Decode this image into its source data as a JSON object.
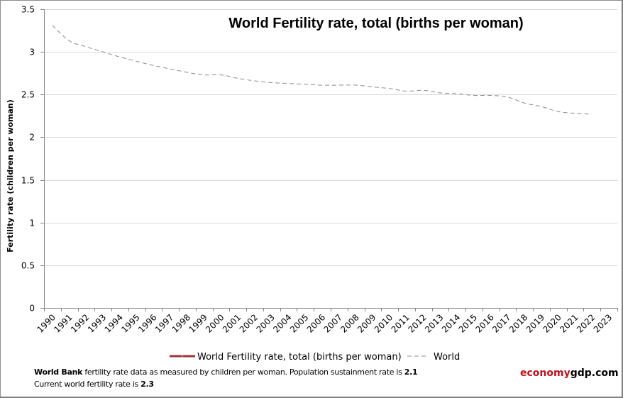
{
  "chart_data": {
    "type": "line",
    "title": "World Fertility rate, total (births per woman)",
    "xlabel": "",
    "ylabel": "Fertility rate (children per woman)",
    "ylim": [
      0,
      3.5
    ],
    "yticks": [
      "0",
      "0.5",
      "1",
      "1.5",
      "2",
      "2.5",
      "3",
      "3.5"
    ],
    "ytick_values": [
      0,
      0.5,
      1,
      1.5,
      2,
      2.5,
      3,
      3.5
    ],
    "grid": true,
    "categories": [
      "1990",
      "1991",
      "1992",
      "1993",
      "1994",
      "1995",
      "1996",
      "1997",
      "1998",
      "1999",
      "2000",
      "2001",
      "2002",
      "2003",
      "2004",
      "2005",
      "2006",
      "2007",
      "2008",
      "2009",
      "2010",
      "2011",
      "2012",
      "2013",
      "2014",
      "2015",
      "2016",
      "2017",
      "2018",
      "2019",
      "2020",
      "2021",
      "2022",
      "2023"
    ],
    "series": [
      {
        "name": "World Fertility rate, total (births per woman)",
        "style": "solid-marker",
        "color": "#A0353A",
        "values": []
      },
      {
        "name": "World",
        "style": "dashed",
        "color": "#8C8C8C",
        "values": [
          3.31,
          3.13,
          3.06,
          3.0,
          2.94,
          2.89,
          2.84,
          2.8,
          2.76,
          2.73,
          2.73,
          2.69,
          2.66,
          2.64,
          2.63,
          2.62,
          2.61,
          2.61,
          2.61,
          2.59,
          2.57,
          2.54,
          2.55,
          2.52,
          2.51,
          2.49,
          2.49,
          2.47,
          2.4,
          2.36,
          2.3,
          2.28,
          2.27,
          null
        ]
      }
    ],
    "legend_position": "bottom"
  },
  "footer": {
    "line1_source": "World Bank",
    "line1_text": " fertility rate data as measured by children per woman.  Population sustainment rate is ",
    "line1_value": "2.1",
    "line2_text": "Current world fertility rate is ",
    "line2_value": "2.3"
  },
  "brand": {
    "part1": "economy",
    "part2": "gdp.com",
    "color1": "#C0101A",
    "color2": "#000000"
  }
}
